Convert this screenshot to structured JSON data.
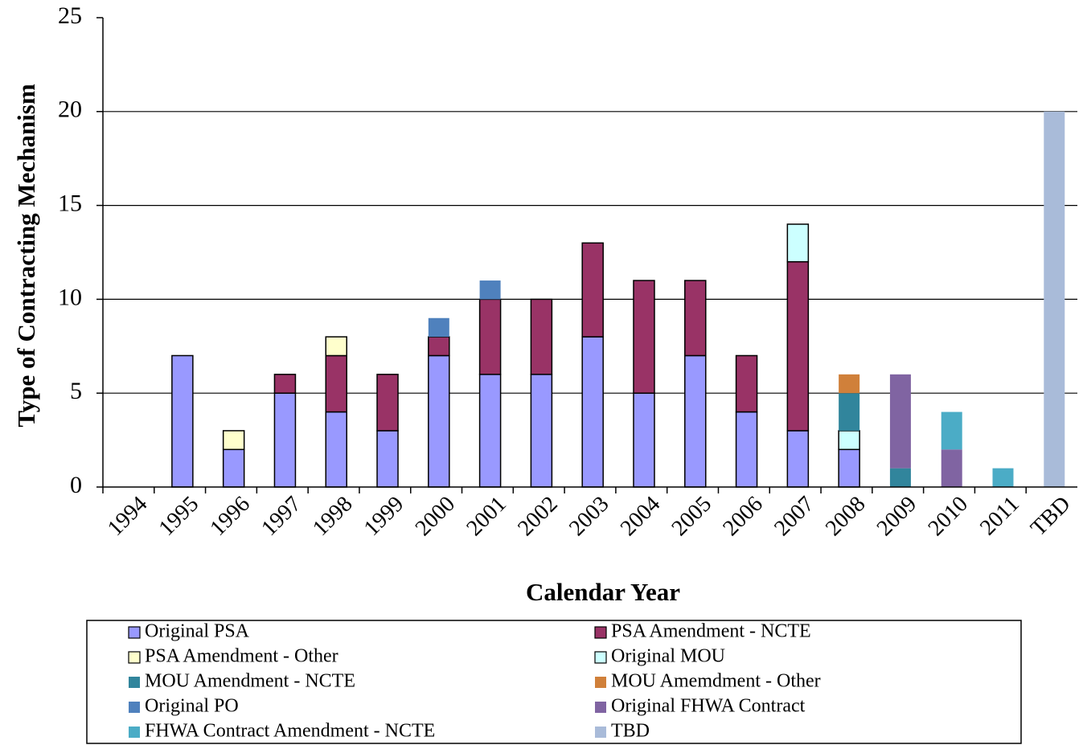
{
  "chart_data": {
    "type": "stacked_bar",
    "x_label": "Calendar Year",
    "y_label": "Type of Contracting Mechanism",
    "categories": [
      "1994",
      "1995",
      "1996",
      "1997",
      "1998",
      "1999",
      "2000",
      "2001",
      "2002",
      "2003",
      "2004",
      "2005",
      "2006",
      "2007",
      "2008",
      "2009",
      "2010",
      "2011",
      "TBD"
    ],
    "series": [
      {
        "name": "Original PSA",
        "color": "#9999ff",
        "values": [
          0,
          7,
          2,
          5,
          4,
          3,
          7,
          6,
          6,
          8,
          5,
          7,
          4,
          3,
          2,
          0,
          0,
          0,
          0
        ]
      },
      {
        "name": "PSA Amendment - NCTE",
        "color": "#993366",
        "values": [
          0,
          0,
          0,
          1,
          3,
          3,
          1,
          4,
          4,
          5,
          6,
          4,
          3,
          9,
          0,
          0,
          0,
          0,
          0
        ]
      },
      {
        "name": "PSA Amendment - Other",
        "color": "#ffffcc",
        "values": [
          0,
          0,
          1,
          0,
          1,
          0,
          0,
          0,
          0,
          0,
          0,
          0,
          0,
          0,
          0,
          0,
          0,
          0,
          0
        ]
      },
      {
        "name": "Original MOU",
        "color": "#ccffff",
        "values": [
          0,
          0,
          0,
          0,
          0,
          0,
          0,
          0,
          0,
          0,
          0,
          0,
          0,
          2,
          1,
          0,
          0,
          0,
          0
        ]
      },
      {
        "name": "MOU Amendment - NCTE",
        "color": "#31859c",
        "values": [
          0,
          0,
          0,
          0,
          0,
          0,
          0,
          0,
          0,
          0,
          0,
          0,
          0,
          0,
          2,
          1,
          0,
          0,
          0
        ]
      },
      {
        "name": "MOU Amemdment - Other",
        "color": "#d0803a",
        "values": [
          0,
          0,
          0,
          0,
          0,
          0,
          0,
          0,
          0,
          0,
          0,
          0,
          0,
          0,
          1,
          0,
          0,
          0,
          0
        ]
      },
      {
        "name": "Original PO",
        "color": "#4f81bd",
        "values": [
          0,
          0,
          0,
          0,
          0,
          0,
          1,
          1,
          0,
          0,
          0,
          0,
          0,
          0,
          0,
          0,
          0,
          0,
          0
        ]
      },
      {
        "name": "Original FHWA Contract",
        "color": "#8064a2",
        "values": [
          0,
          0,
          0,
          0,
          0,
          0,
          0,
          0,
          0,
          0,
          0,
          0,
          0,
          0,
          0,
          5,
          2,
          0,
          0
        ]
      },
      {
        "name": "FHWA Contract Amendment - NCTE",
        "color": "#4bacc6",
        "values": [
          0,
          0,
          0,
          0,
          0,
          0,
          0,
          0,
          0,
          0,
          0,
          0,
          0,
          0,
          0,
          0,
          2,
          1,
          0
        ]
      },
      {
        "name": "TBD",
        "color": "#a9bbd9",
        "values": [
          0,
          0,
          0,
          0,
          0,
          0,
          0,
          0,
          0,
          0,
          0,
          0,
          0,
          0,
          0,
          0,
          0,
          0,
          20
        ]
      }
    ],
    "ylim": [
      0,
      25
    ],
    "yticks": [
      0,
      5,
      10,
      15,
      20,
      25
    ],
    "grid": true
  }
}
